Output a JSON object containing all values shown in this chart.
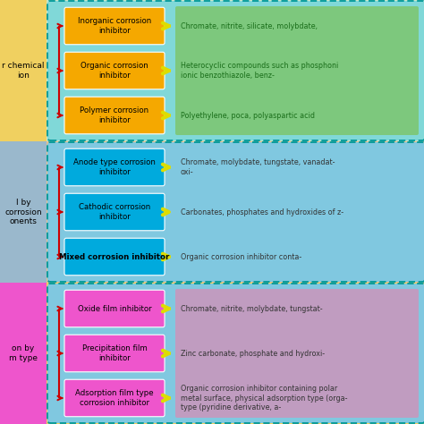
{
  "sections": [
    {
      "bg_color": "#c8e6c8",
      "left_label": "r chemical\nion",
      "left_bg": "#f0d060",
      "bracket_color": "#cc0000",
      "inner_bg": "#80d8d8",
      "desc_area_color": "#7dc87d",
      "boxes": [
        {
          "label": "Inorganic corrosion\ninhibitor",
          "box_color": "#f5a800"
        },
        {
          "label": "Organic corrosion\ninhibitor",
          "box_color": "#f5a800"
        },
        {
          "label": "Polymer corrosion\ninhibitor",
          "box_color": "#f5a800"
        }
      ],
      "descriptions": [
        "Chromate, nitrite, silicate, molybdate,",
        "Heterocyclic compounds such as phosphoni\nionic benzothiazole, benz-",
        "Polyethylene, poca, polyaspartic acid"
      ],
      "desc_color": "#1a6e1a"
    },
    {
      "bg_color": "#e8c090",
      "left_label": "l by\ncorrosion\nonents",
      "left_bg": "#9ab8cc",
      "bracket_color": "#cc0000",
      "inner_bg": "#80c8e0",
      "desc_area_color": "#80c8e0",
      "boxes": [
        {
          "label": "Anode type corrosion\ninhibitor",
          "box_color": "#00aadd"
        },
        {
          "label": "Cathodic corrosion\ninhibitor",
          "box_color": "#00aadd"
        },
        {
          "label": "Mixed corrosion inhibitor",
          "box_color": "#00aadd",
          "bold": true
        }
      ],
      "descriptions": [
        "Chromate, molybdate, tungstate, vanadat-\noxi-",
        "Carbonates, phosphates and hydroxides of z-",
        "Organic corrosion inhibitor conta-"
      ],
      "desc_color": "#333333"
    },
    {
      "bg_color": "#f0d060",
      "left_label": "on by\nm type",
      "left_bg": "#ee55cc",
      "bracket_color": "#cc0000",
      "inner_bg": "#80c8e0",
      "desc_area_color": "#c09cc0",
      "boxes": [
        {
          "label": "Oxide film inhibitor",
          "box_color": "#ee55cc"
        },
        {
          "label": "Precipitation film\ninhibitor",
          "box_color": "#ee55cc"
        },
        {
          "label": "Adsorption film type\ncorrosion inhibitor",
          "box_color": "#ee55cc"
        }
      ],
      "descriptions": [
        "Chromate, nitrite, molybdate, tungstat-",
        "Zinc carbonate, phosphate and hydroxi-",
        "Organic corrosion inhibitor containing polar\nmetal surface, physical adsorption type (orga-\ntype (pyridine derivative, a-"
      ],
      "desc_color": "#333333"
    }
  ],
  "fig_width": 4.74,
  "fig_height": 4.74,
  "dpi": 100
}
